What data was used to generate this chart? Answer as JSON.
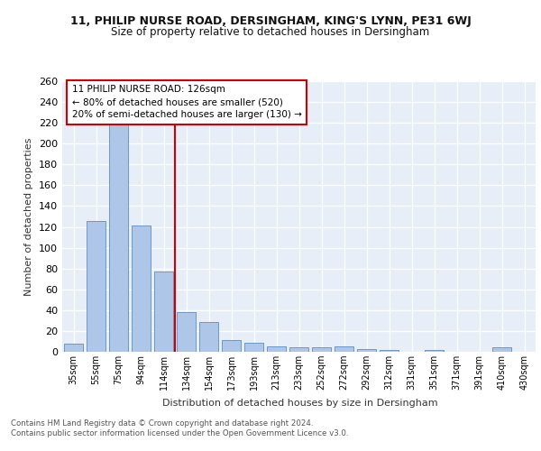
{
  "title_line1": "11, PHILIP NURSE ROAD, DERSINGHAM, KING'S LYNN, PE31 6WJ",
  "title_line2": "Size of property relative to detached houses in Dersingham",
  "xlabel": "Distribution of detached houses by size in Dersingham",
  "ylabel": "Number of detached properties",
  "categories": [
    "35sqm",
    "55sqm",
    "75sqm",
    "94sqm",
    "114sqm",
    "134sqm",
    "154sqm",
    "173sqm",
    "193sqm",
    "213sqm",
    "233sqm",
    "252sqm",
    "272sqm",
    "292sqm",
    "312sqm",
    "331sqm",
    "351sqm",
    "371sqm",
    "391sqm",
    "410sqm",
    "430sqm"
  ],
  "values": [
    8,
    126,
    219,
    121,
    77,
    38,
    29,
    11,
    9,
    5,
    4,
    4,
    5,
    3,
    2,
    0,
    2,
    0,
    0,
    4,
    0
  ],
  "bar_color": "#aec6e8",
  "bar_edge_color": "#5a8fc2",
  "vline_color": "#cc0000",
  "annotation_text": "11 PHILIP NURSE ROAD: 126sqm\n← 80% of detached houses are smaller (520)\n20% of semi-detached houses are larger (130) →",
  "annotation_box_color": "#ffffff",
  "annotation_box_edge": "#cc0000",
  "ylim": [
    0,
    260
  ],
  "yticks": [
    0,
    20,
    40,
    60,
    80,
    100,
    120,
    140,
    160,
    180,
    200,
    220,
    240,
    260
  ],
  "footer_line1": "Contains HM Land Registry data © Crown copyright and database right 2024.",
  "footer_line2": "Contains public sector information licensed under the Open Government Licence v3.0.",
  "bg_color": "#e8eef8",
  "fig_bg_color": "#ffffff"
}
